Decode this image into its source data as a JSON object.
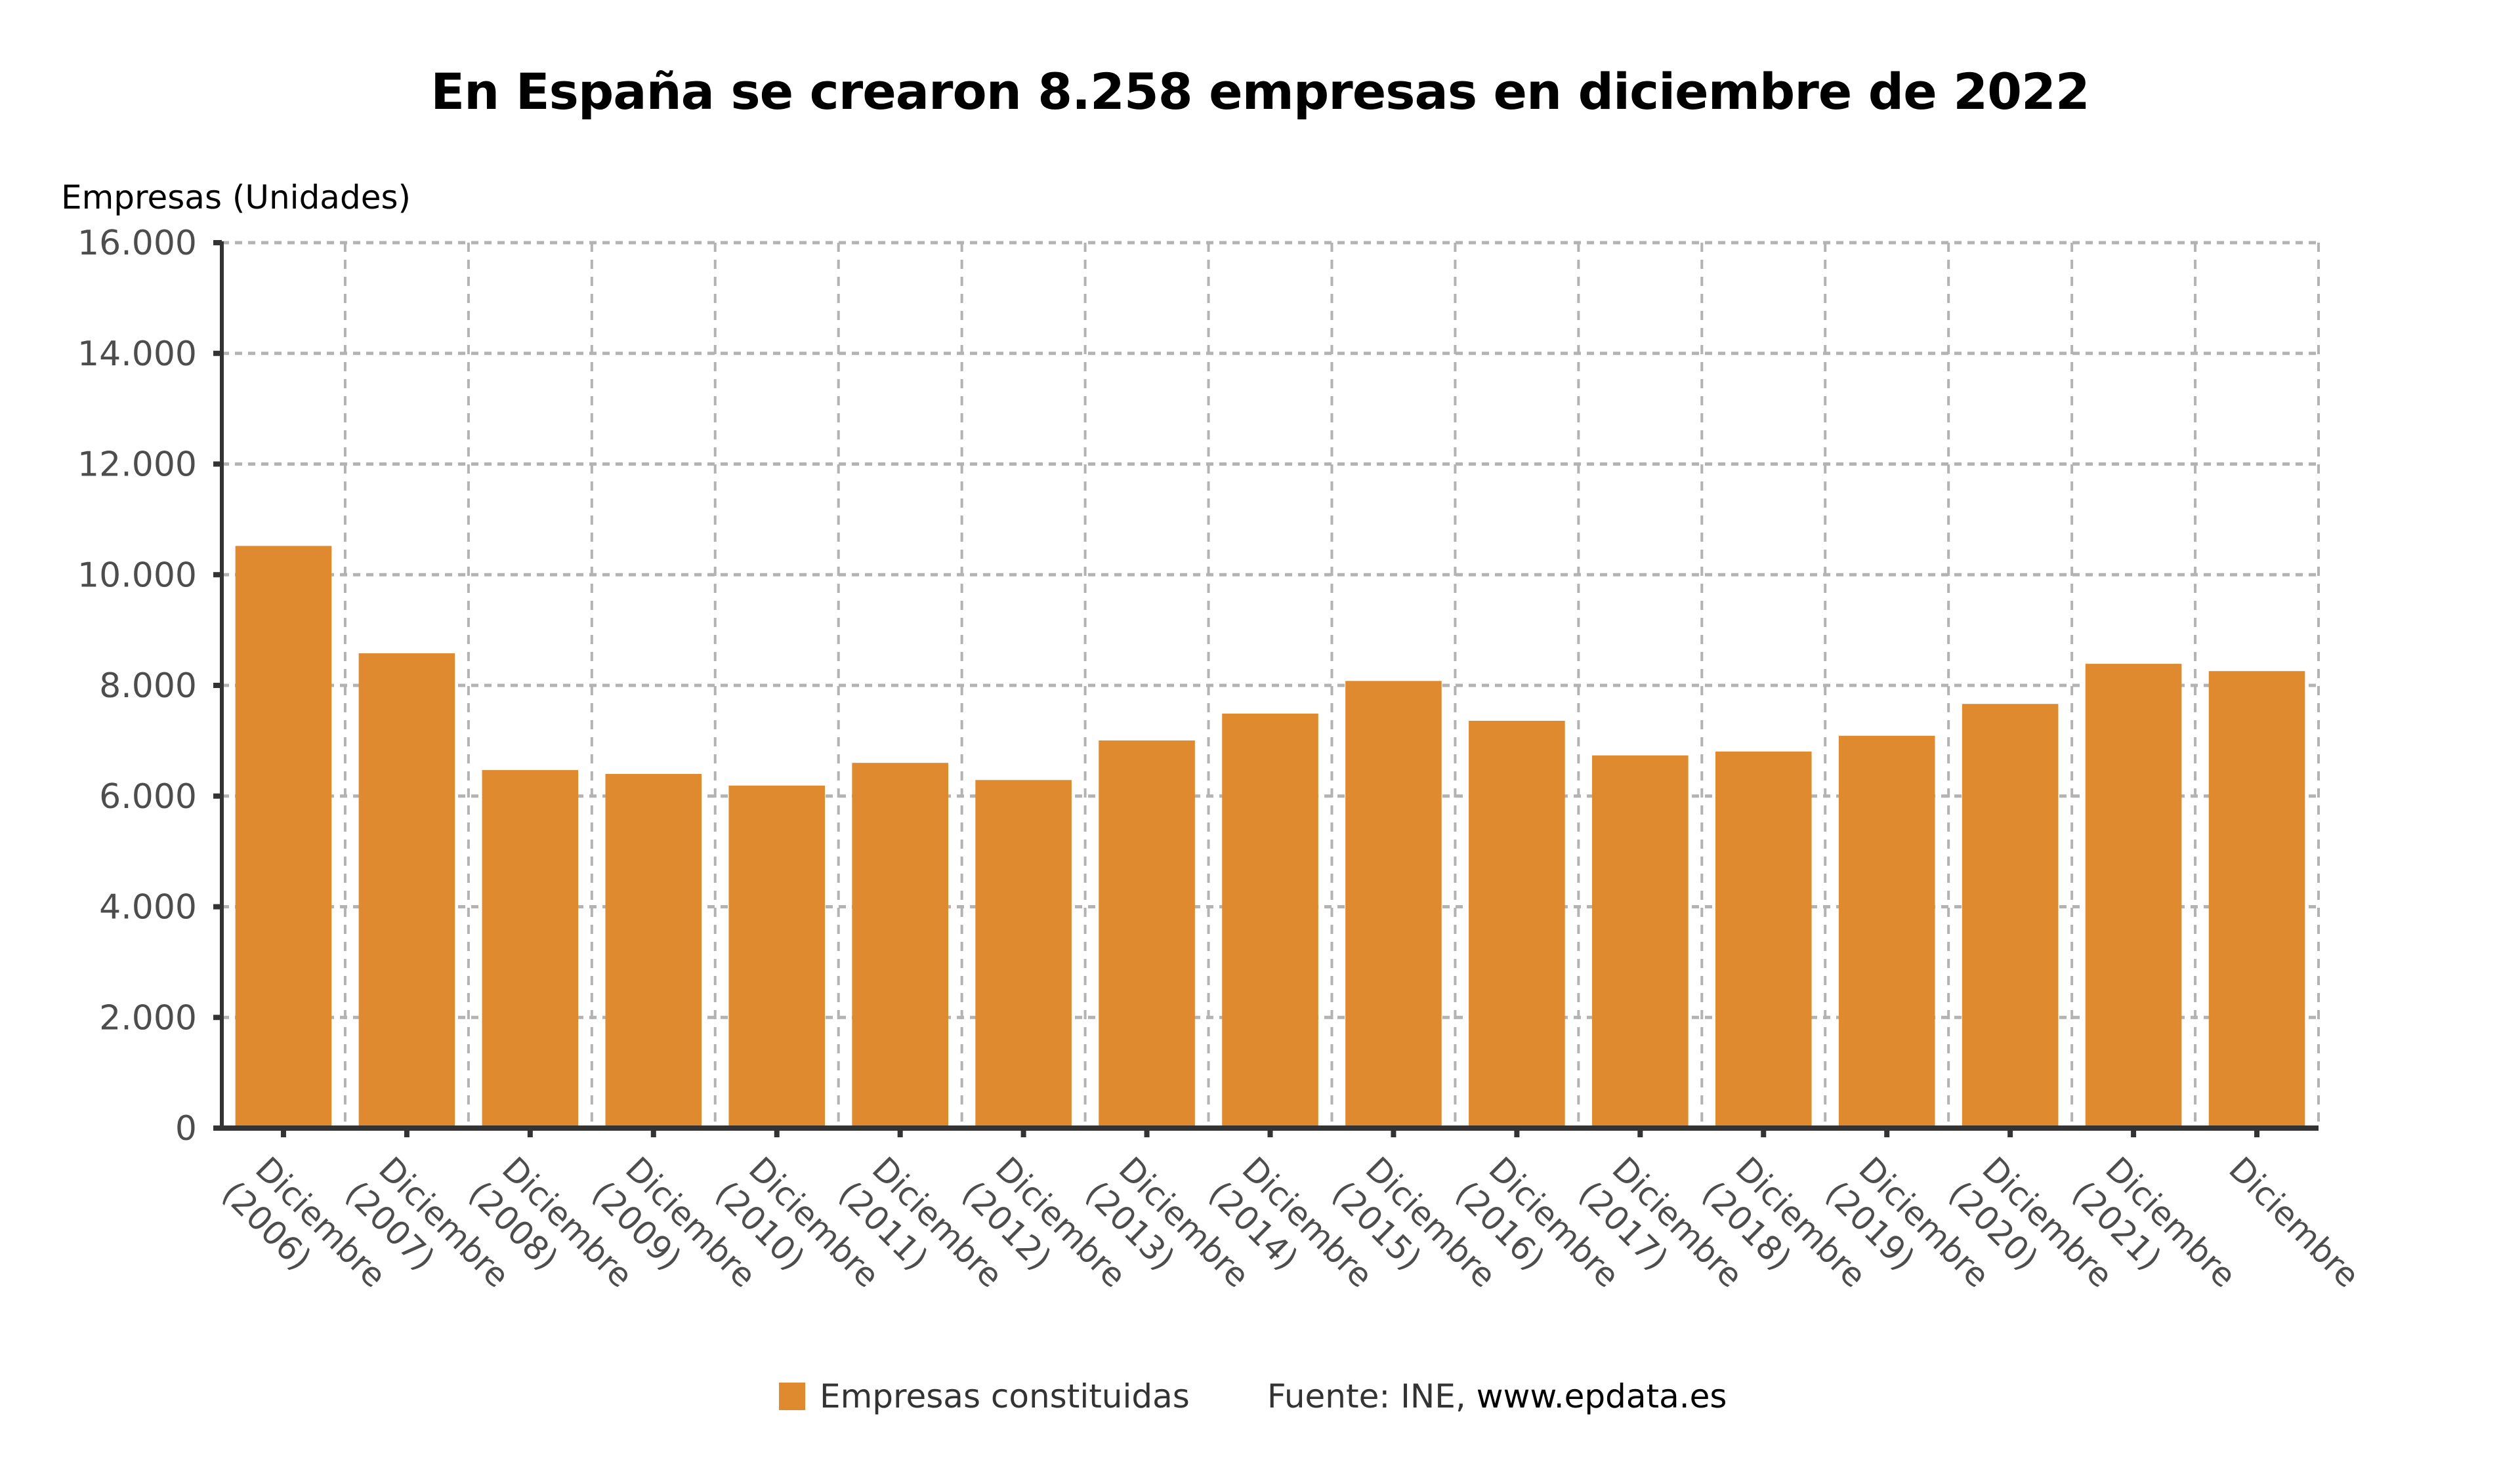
{
  "chart_data": {
    "type": "bar",
    "title": "En España se crearon 8.258 empresas en diciembre de 2022",
    "ylabel": "Empresas (Unidades)",
    "xlabel": "",
    "ylim": [
      0,
      16000
    ],
    "yticks": [
      0,
      2000,
      4000,
      6000,
      8000,
      10000,
      12000,
      14000,
      16000
    ],
    "ytick_labels": [
      "0",
      "2.000",
      "4.000",
      "6.000",
      "8.000",
      "10.000",
      "12.000",
      "14.000",
      "16.000"
    ],
    "grid": true,
    "categories": [
      [
        "Diciembre",
        "(2006)"
      ],
      [
        "Diciembre",
        "(2007)"
      ],
      [
        "Diciembre",
        "(2008)"
      ],
      [
        "Diciembre",
        "(2009)"
      ],
      [
        "Diciembre",
        "(2010)"
      ],
      [
        "Diciembre",
        "(2011)"
      ],
      [
        "Diciembre",
        "(2012)"
      ],
      [
        "Diciembre",
        "(2013)"
      ],
      [
        "Diciembre",
        "(2014)"
      ],
      [
        "Diciembre",
        "(2015)"
      ],
      [
        "Diciembre",
        "(2016)"
      ],
      [
        "Diciembre",
        "(2017)"
      ],
      [
        "Diciembre",
        "(2018)"
      ],
      [
        "Diciembre",
        "(2019)"
      ],
      [
        "Diciembre",
        "(2020)"
      ],
      [
        "Diciembre",
        "(2021)"
      ],
      [
        "Diciembre"
      ]
    ],
    "series": [
      {
        "name": "Empresas constituidas",
        "color": "#e08a30",
        "values": [
          10520,
          8580,
          6470,
          6400,
          6190,
          6600,
          6290,
          7005,
          7490,
          8080,
          7360,
          6735,
          6805,
          7090,
          7665,
          8390,
          8258
        ]
      }
    ],
    "legend": {
      "position": "bottom",
      "entries": [
        "Empresas constituidas"
      ]
    },
    "source_prefix": "Fuente: INE, ",
    "source_site": "www.epdata.es"
  },
  "colors": {
    "bar": "#e08a30",
    "grid": "#b3b3b3",
    "axis": "#333333",
    "tick_text": "#4d4d4d"
  }
}
